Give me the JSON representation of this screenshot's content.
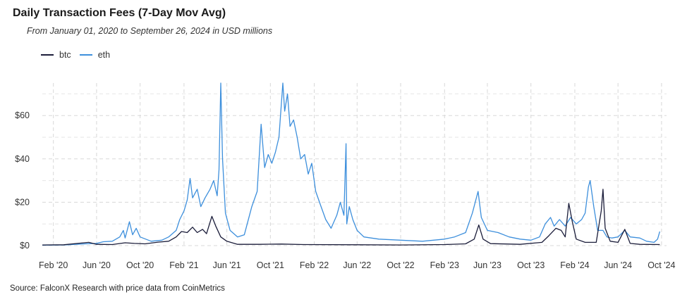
{
  "title": "Daily Transaction Fees (7-Day Mov Avg)",
  "subtitle": "From January 01, 2020 to September 26, 2024 in USD millions",
  "source": "Source: FalconX Research with price data from CoinMetrics",
  "colors": {
    "btc": "#1b1d3a",
    "eth": "#3d8fdc",
    "grid": "#d8d8d8"
  },
  "chart_data": {
    "type": "line",
    "title": "Daily Transaction Fees (7-Day Mov Avg)",
    "xlabel": "",
    "ylabel": "",
    "ylim": [
      0,
      75
    ],
    "xlim": [
      "2020-01-01",
      "2024-10-15"
    ],
    "yticks": [
      0,
      20,
      40,
      60
    ],
    "ytick_labels": [
      "$0",
      "$20",
      "$40",
      "$60"
    ],
    "xticks": [
      "2020-02-01",
      "2020-06-01",
      "2020-10-01",
      "2021-02-01",
      "2021-06-01",
      "2021-10-01",
      "2022-02-01",
      "2022-06-01",
      "2022-10-01",
      "2023-02-01",
      "2023-06-01",
      "2023-10-01",
      "2024-02-01",
      "2024-06-01",
      "2024-10-01"
    ],
    "xtick_labels": [
      "Feb '20",
      "Jun '20",
      "Oct '20",
      "Feb '21",
      "Jun '21",
      "Oct '21",
      "Feb '22",
      "Jun '22",
      "Oct '22",
      "Feb '23",
      "Jun '23",
      "Oct '23",
      "Feb '24",
      "Jun '24",
      "Oct '24"
    ],
    "grid": true,
    "legend_position": "top-left",
    "series": [
      {
        "name": "btc",
        "color": "#1b1d3a",
        "points": [
          [
            "2020-01-01",
            0.3
          ],
          [
            "2020-03-01",
            0.4
          ],
          [
            "2020-05-10",
            1.5
          ],
          [
            "2020-06-01",
            0.6
          ],
          [
            "2020-07-15",
            0.5
          ],
          [
            "2020-08-20",
            1.3
          ],
          [
            "2020-09-15",
            1.0
          ],
          [
            "2020-10-15",
            0.8
          ],
          [
            "2020-11-20",
            1.6
          ],
          [
            "2020-12-20",
            2.0
          ],
          [
            "2021-01-10",
            4.0
          ],
          [
            "2021-01-25",
            6.5
          ],
          [
            "2021-02-10",
            6.0
          ],
          [
            "2021-02-25",
            8.5
          ],
          [
            "2021-03-10",
            6.0
          ],
          [
            "2021-03-25",
            7.5
          ],
          [
            "2021-04-05",
            5.5
          ],
          [
            "2021-04-20",
            13.5
          ],
          [
            "2021-05-01",
            9.0
          ],
          [
            "2021-05-15",
            4.0
          ],
          [
            "2021-06-01",
            2.0
          ],
          [
            "2021-07-01",
            0.6
          ],
          [
            "2021-09-01",
            0.6
          ],
          [
            "2021-11-01",
            0.7
          ],
          [
            "2022-01-01",
            0.5
          ],
          [
            "2022-06-01",
            0.4
          ],
          [
            "2022-10-01",
            0.3
          ],
          [
            "2023-02-01",
            0.5
          ],
          [
            "2023-04-01",
            0.8
          ],
          [
            "2023-04-25",
            3.0
          ],
          [
            "2023-05-08",
            9.5
          ],
          [
            "2023-05-20",
            3.0
          ],
          [
            "2023-06-10",
            0.9
          ],
          [
            "2023-09-01",
            0.6
          ],
          [
            "2023-11-01",
            1.5
          ],
          [
            "2023-11-20",
            4.5
          ],
          [
            "2023-12-10",
            8.0
          ],
          [
            "2023-12-25",
            7.0
          ],
          [
            "2024-01-05",
            4.0
          ],
          [
            "2024-01-15",
            19.5
          ],
          [
            "2024-01-25",
            11.0
          ],
          [
            "2024-02-05",
            3.0
          ],
          [
            "2024-03-01",
            1.5
          ],
          [
            "2024-04-01",
            1.5
          ],
          [
            "2024-04-15",
            16.0
          ],
          [
            "2024-04-20",
            26.0
          ],
          [
            "2024-04-26",
            8.0
          ],
          [
            "2024-05-10",
            2.0
          ],
          [
            "2024-06-01",
            1.5
          ],
          [
            "2024-06-20",
            7.5
          ],
          [
            "2024-07-05",
            1.0
          ],
          [
            "2024-08-01",
            0.6
          ],
          [
            "2024-09-26",
            0.5
          ]
        ]
      },
      {
        "name": "eth",
        "color": "#3d8fdc",
        "points": [
          [
            "2020-01-01",
            0.2
          ],
          [
            "2020-03-01",
            0.3
          ],
          [
            "2020-05-01",
            0.8
          ],
          [
            "2020-06-01",
            1.0
          ],
          [
            "2020-06-20",
            1.8
          ],
          [
            "2020-07-15",
            2.0
          ],
          [
            "2020-08-05",
            4.0
          ],
          [
            "2020-08-15",
            7.0
          ],
          [
            "2020-08-20",
            3.5
          ],
          [
            "2020-09-01",
            11.0
          ],
          [
            "2020-09-10",
            5.0
          ],
          [
            "2020-09-20",
            8.0
          ],
          [
            "2020-10-01",
            4.0
          ],
          [
            "2020-11-01",
            2.0
          ],
          [
            "2020-12-01",
            2.5
          ],
          [
            "2020-12-20",
            4.0
          ],
          [
            "2021-01-10",
            7.0
          ],
          [
            "2021-01-20",
            12.0
          ],
          [
            "2021-02-01",
            16.0
          ],
          [
            "2021-02-10",
            21.0
          ],
          [
            "2021-02-18",
            31.0
          ],
          [
            "2021-02-25",
            22.0
          ],
          [
            "2021-03-10",
            26.0
          ],
          [
            "2021-03-20",
            18.0
          ],
          [
            "2021-04-01",
            22.0
          ],
          [
            "2021-04-15",
            26.0
          ],
          [
            "2021-04-25",
            30.0
          ],
          [
            "2021-05-05",
            23.0
          ],
          [
            "2021-05-10",
            35.0
          ],
          [
            "2021-05-15",
            75.0
          ],
          [
            "2021-05-20",
            40.0
          ],
          [
            "2021-05-28",
            15.0
          ],
          [
            "2021-06-10",
            7.0
          ],
          [
            "2021-07-01",
            4.0
          ],
          [
            "2021-07-20",
            5.0
          ],
          [
            "2021-08-10",
            18.0
          ],
          [
            "2021-08-25",
            25.0
          ],
          [
            "2021-09-05",
            56.0
          ],
          [
            "2021-09-15",
            36.0
          ],
          [
            "2021-09-25",
            42.0
          ],
          [
            "2021-10-05",
            38.0
          ],
          [
            "2021-10-15",
            43.0
          ],
          [
            "2021-10-25",
            50.0
          ],
          [
            "2021-11-05",
            75.0
          ],
          [
            "2021-11-10",
            62.0
          ],
          [
            "2021-11-18",
            70.0
          ],
          [
            "2021-11-25",
            55.0
          ],
          [
            "2021-12-05",
            58.0
          ],
          [
            "2021-12-15",
            50.0
          ],
          [
            "2021-12-25",
            40.0
          ],
          [
            "2022-01-05",
            42.0
          ],
          [
            "2022-01-15",
            33.0
          ],
          [
            "2022-01-25",
            38.0
          ],
          [
            "2022-02-05",
            25.0
          ],
          [
            "2022-02-20",
            18.0
          ],
          [
            "2022-03-05",
            12.0
          ],
          [
            "2022-03-20",
            8.0
          ],
          [
            "2022-04-05",
            14.0
          ],
          [
            "2022-04-15",
            20.0
          ],
          [
            "2022-04-25",
            14.0
          ],
          [
            "2022-05-01",
            47.0
          ],
          [
            "2022-05-03",
            10.0
          ],
          [
            "2022-05-10",
            18.0
          ],
          [
            "2022-05-20",
            12.0
          ],
          [
            "2022-06-01",
            7.0
          ],
          [
            "2022-06-20",
            4.0
          ],
          [
            "2022-08-01",
            3.0
          ],
          [
            "2022-10-01",
            2.5
          ],
          [
            "2022-12-01",
            2.0
          ],
          [
            "2023-02-01",
            3.0
          ],
          [
            "2023-03-01",
            4.0
          ],
          [
            "2023-04-01",
            6.0
          ],
          [
            "2023-04-20",
            15.0
          ],
          [
            "2023-05-06",
            25.0
          ],
          [
            "2023-05-15",
            13.0
          ],
          [
            "2023-06-01",
            7.0
          ],
          [
            "2023-07-01",
            6.0
          ],
          [
            "2023-08-01",
            4.0
          ],
          [
            "2023-09-01",
            3.0
          ],
          [
            "2023-10-01",
            2.5
          ],
          [
            "2023-10-25",
            4.0
          ],
          [
            "2023-11-10",
            10.0
          ],
          [
            "2023-11-25",
            13.0
          ],
          [
            "2023-12-05",
            9.0
          ],
          [
            "2023-12-20",
            12.0
          ],
          [
            "2024-01-05",
            9.0
          ],
          [
            "2024-01-20",
            13.0
          ],
          [
            "2024-02-05",
            10.0
          ],
          [
            "2024-02-20",
            12.0
          ],
          [
            "2024-03-01",
            15.0
          ],
          [
            "2024-03-10",
            27.0
          ],
          [
            "2024-03-15",
            30.0
          ],
          [
            "2024-03-25",
            18.0
          ],
          [
            "2024-04-05",
            7.0
          ],
          [
            "2024-04-20",
            7.0
          ],
          [
            "2024-05-01",
            4.0
          ],
          [
            "2024-05-15",
            3.5
          ],
          [
            "2024-06-01",
            4.0
          ],
          [
            "2024-06-20",
            7.0
          ],
          [
            "2024-07-05",
            4.0
          ],
          [
            "2024-08-01",
            3.5
          ],
          [
            "2024-08-20",
            2.0
          ],
          [
            "2024-09-10",
            1.5
          ],
          [
            "2024-09-20",
            3.0
          ],
          [
            "2024-09-26",
            6.5
          ]
        ]
      }
    ]
  }
}
